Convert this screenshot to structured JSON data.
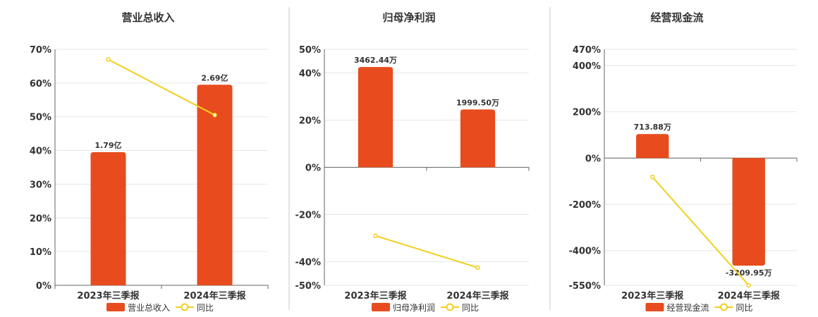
{
  "colors": {
    "bar": "#e84c1e",
    "line": "#f2cf1d"
  },
  "legend": {
    "line_label": "同比"
  },
  "chart_data": [
    {
      "type": "bar",
      "title": "营业总收入",
      "categories": [
        "2023年三季报",
        "2024年三季报"
      ],
      "bar_series": {
        "name": "营业总收入",
        "values": [
          39.5,
          59.5
        ],
        "labels": [
          "1.79亿",
          "2.69亿"
        ]
      },
      "line_series": {
        "name": "同比",
        "values": [
          67,
          50.5
        ]
      },
      "yticks": [
        0,
        10,
        20,
        30,
        40,
        50,
        60,
        70
      ],
      "ytick_labels": [
        "0%",
        "10%",
        "20%",
        "30%",
        "40%",
        "50%",
        "60%",
        "70%"
      ],
      "ylim": [
        0,
        70
      ],
      "legend": "bottom-center"
    },
    {
      "type": "bar",
      "title": "归母净利润",
      "categories": [
        "2023年三季报",
        "2024年三季报"
      ],
      "bar_series": {
        "name": "归母净利润",
        "values": [
          42.5,
          24.5
        ],
        "labels": [
          "3462.44万",
          "1999.50万"
        ]
      },
      "line_series": {
        "name": "同比",
        "values": [
          -29,
          -42.5
        ]
      },
      "yticks": [
        -50,
        -40,
        -20,
        0,
        20,
        40,
        50
      ],
      "ytick_labels": [
        "-50%",
        "-40%",
        "-20%",
        "0%",
        "20%",
        "40%",
        "50%"
      ],
      "ylim": [
        -50,
        50
      ],
      "legend": "bottom-center"
    },
    {
      "type": "bar",
      "title": "经营现金流",
      "categories": [
        "2023年三季报",
        "2024年三季报"
      ],
      "bar_series": {
        "name": "经营现金流",
        "values": [
          104,
          -465
        ],
        "labels": [
          "713.88万",
          "-3209.95万"
        ]
      },
      "line_series": {
        "name": "同比",
        "values": [
          -82,
          -550
        ]
      },
      "yticks": [
        -550,
        -400,
        -200,
        0,
        200,
        400,
        470
      ],
      "ytick_labels": [
        "-550%",
        "-400%",
        "-200%",
        "0%",
        "200%",
        "400%",
        "470%"
      ],
      "ylim": [
        -550,
        470
      ],
      "legend": "bottom-center"
    }
  ]
}
